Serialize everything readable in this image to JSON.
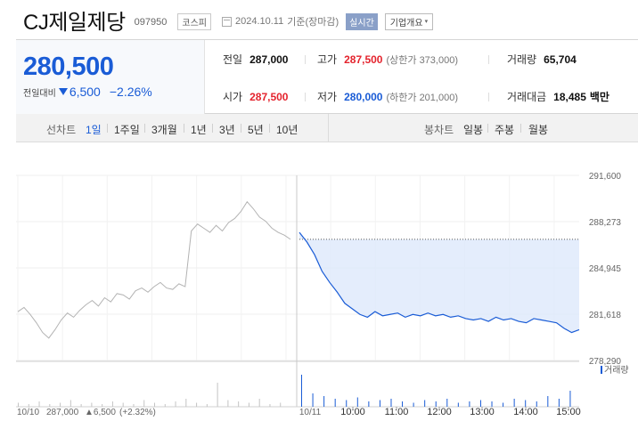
{
  "header": {
    "title": "CJ제일제당",
    "code": "097950",
    "market": "코스피",
    "date": "2024.10.11",
    "basis": "기준(장마감)",
    "realtime": "실시간",
    "company_info": "기업개요",
    "company_info_caret": "▾"
  },
  "price": {
    "current": "280,500",
    "change_label": "전일대비",
    "change_value": "6,500",
    "change_pct": "−2.26%"
  },
  "stats": {
    "prev_close_label": "전일",
    "prev_close": "287,000",
    "high_label": "고가",
    "high": "287,500",
    "upper_limit": "(상한가 373,000)",
    "volume_label": "거래량",
    "volume": "65,704",
    "open_label": "시가",
    "open": "287,500",
    "low_label": "저가",
    "low": "280,000",
    "lower_limit": "(하한가 201,000)",
    "amount_label": "거래대금",
    "amount": "18,485",
    "amount_unit": "백만"
  },
  "tabs": {
    "line_label": "선차트",
    "line_tabs": [
      "1일",
      "1주일",
      "3개월",
      "1년",
      "3년",
      "5년",
      "10년"
    ],
    "active_line_tab": "1일",
    "candle_label": "봉차트",
    "candle_tabs": [
      "일봉",
      "주봉",
      "월봉"
    ]
  },
  "colors": {
    "down": "#1a5cd6",
    "up": "#e4232d",
    "prev_day_line": "#b3b3b3",
    "fill": "#dde8fb"
  },
  "chart_data": {
    "type": "line",
    "y_ticks": [
      "291,600",
      "288,273",
      "284,945",
      "281,618",
      "278,290"
    ],
    "ylim": [
      278290,
      291600
    ],
    "x_labels": [
      "10/11",
      "10:00",
      "11:00",
      "12:00",
      "13:00",
      "14:00",
      "15:00"
    ],
    "volume_label": "거래량",
    "prev_day_footer": {
      "date": "10/10",
      "close": "287,000",
      "change": "▲6,500",
      "pct": "(+2.32%)"
    },
    "series": [
      {
        "session": "10/10",
        "color": "#b3b3b3",
        "values": [
          281800,
          282100,
          281600,
          281000,
          280300,
          279900,
          280500,
          281200,
          281700,
          281400,
          281900,
          282300,
          282600,
          282200,
          282800,
          282500,
          283100,
          283000,
          282700,
          283300,
          283500,
          283200,
          283600,
          283900,
          283500,
          283400,
          283800,
          283600,
          287600,
          288100,
          287800,
          287500,
          288000,
          287600,
          288200,
          288500,
          289000,
          289700,
          289200,
          288600,
          288300,
          287800,
          287500,
          287300,
          287000
        ]
      },
      {
        "session": "10/11",
        "color": "#1a5cd6",
        "values": [
          287500,
          286800,
          285900,
          284700,
          283900,
          283200,
          282400,
          282000,
          281600,
          281400,
          281800,
          281500,
          281600,
          281700,
          281400,
          281600,
          281500,
          281700,
          281500,
          281600,
          281400,
          281500,
          281300,
          281200,
          281300,
          281100,
          281400,
          281200,
          281300,
          281100,
          281000,
          281300,
          281200,
          281100,
          281000,
          280600,
          280300,
          280500
        ]
      }
    ],
    "volume": {
      "10/10": [
        3,
        2,
        4,
        2,
        3,
        5,
        2,
        3,
        2,
        4,
        3,
        2,
        5,
        3,
        2,
        4,
        6,
        3,
        2,
        18,
        5,
        4,
        3,
        6,
        2,
        3
      ],
      "10/11": [
        24,
        10,
        8,
        6,
        5,
        7,
        4,
        5,
        6,
        4,
        3,
        5,
        4,
        6,
        3,
        4,
        5,
        4,
        3,
        6,
        5,
        4,
        8,
        6,
        12
      ]
    }
  }
}
